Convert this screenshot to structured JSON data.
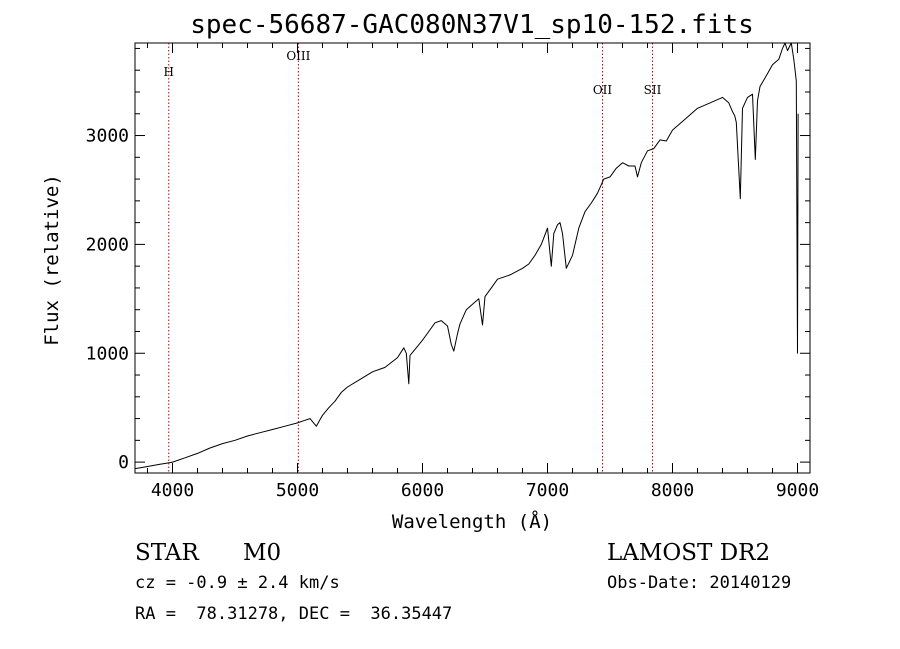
{
  "chart_data": {
    "type": "line",
    "title": "spec-56687-GAC080N37V1_sp10-152.fits",
    "xlabel": "Wavelength (Å)",
    "ylabel": "Flux (relative)",
    "xlim": [
      3700,
      9100
    ],
    "ylim": [
      -100,
      3850
    ],
    "xticks": [
      4000,
      5000,
      6000,
      7000,
      8000,
      9000
    ],
    "yticks": [
      0,
      1000,
      2000,
      3000
    ],
    "series": [
      {
        "color": "#000000",
        "x": [
          3700,
          3750,
          3800,
          3850,
          3900,
          3950,
          4000,
          4100,
          4200,
          4300,
          4400,
          4500,
          4600,
          4700,
          4800,
          4900,
          5000,
          5050,
          5100,
          5150,
          5200,
          5250,
          5300,
          5350,
          5400,
          5500,
          5600,
          5700,
          5800,
          5850,
          5870,
          5890,
          5900,
          5950,
          6000,
          6050,
          6100,
          6150,
          6200,
          6230,
          6250,
          6280,
          6300,
          6350,
          6400,
          6450,
          6480,
          6500,
          6550,
          6600,
          6700,
          6800,
          6850,
          6900,
          6950,
          7000,
          7030,
          7050,
          7080,
          7100,
          7120,
          7150,
          7200,
          7250,
          7300,
          7350,
          7400,
          7450,
          7500,
          7550,
          7600,
          7650,
          7700,
          7720,
          7750,
          7800,
          7850,
          7900,
          7950,
          8000,
          8100,
          8200,
          8300,
          8400,
          8450,
          8480,
          8498,
          8510,
          8542,
          8560,
          8600,
          8640,
          8662,
          8680,
          8700,
          8750,
          8800,
          8850,
          8880,
          8900,
          8920,
          8950,
          8970,
          8990,
          9000,
          9005
        ],
        "y": [
          -60,
          -50,
          -40,
          -30,
          -20,
          -10,
          0,
          40,
          80,
          130,
          170,
          200,
          240,
          270,
          300,
          330,
          360,
          380,
          400,
          330,
          430,
          500,
          560,
          640,
          690,
          760,
          830,
          870,
          960,
          1050,
          1000,
          720,
          980,
          1050,
          1120,
          1200,
          1280,
          1300,
          1250,
          1080,
          1020,
          1180,
          1270,
          1400,
          1450,
          1500,
          1260,
          1520,
          1600,
          1680,
          1720,
          1780,
          1820,
          1900,
          2000,
          2150,
          1800,
          2100,
          2180,
          2200,
          2100,
          1780,
          1900,
          2150,
          2300,
          2380,
          2470,
          2600,
          2620,
          2700,
          2750,
          2720,
          2720,
          2620,
          2750,
          2860,
          2880,
          2960,
          2950,
          3050,
          3150,
          3250,
          3300,
          3350,
          3300,
          3220,
          3180,
          3120,
          2420,
          3250,
          3350,
          3380,
          2780,
          3320,
          3450,
          3550,
          3650,
          3700,
          3800,
          3850,
          3780,
          3850,
          3700,
          3500,
          1000,
          3200
        ]
      }
    ],
    "reference_lines": [
      {
        "label": "H",
        "x": 3970,
        "color": "#cc0000"
      },
      {
        "label": "OIII",
        "x": 5007,
        "color": "#cc0000"
      },
      {
        "label": "OII",
        "x": 7440,
        "color": "#cc0000"
      },
      {
        "label": "SII",
        "x": 7840,
        "color": "#cc0000"
      }
    ],
    "grid": false
  },
  "info": {
    "class_label": "STAR",
    "subclass": "M0",
    "survey": "LAMOST DR2",
    "velocity": "cz = -0.9 ± 2.4 km/s",
    "obs_date": "Obs-Date: 20140129",
    "coords": "RA =  78.31278, DEC =  36.35447"
  }
}
